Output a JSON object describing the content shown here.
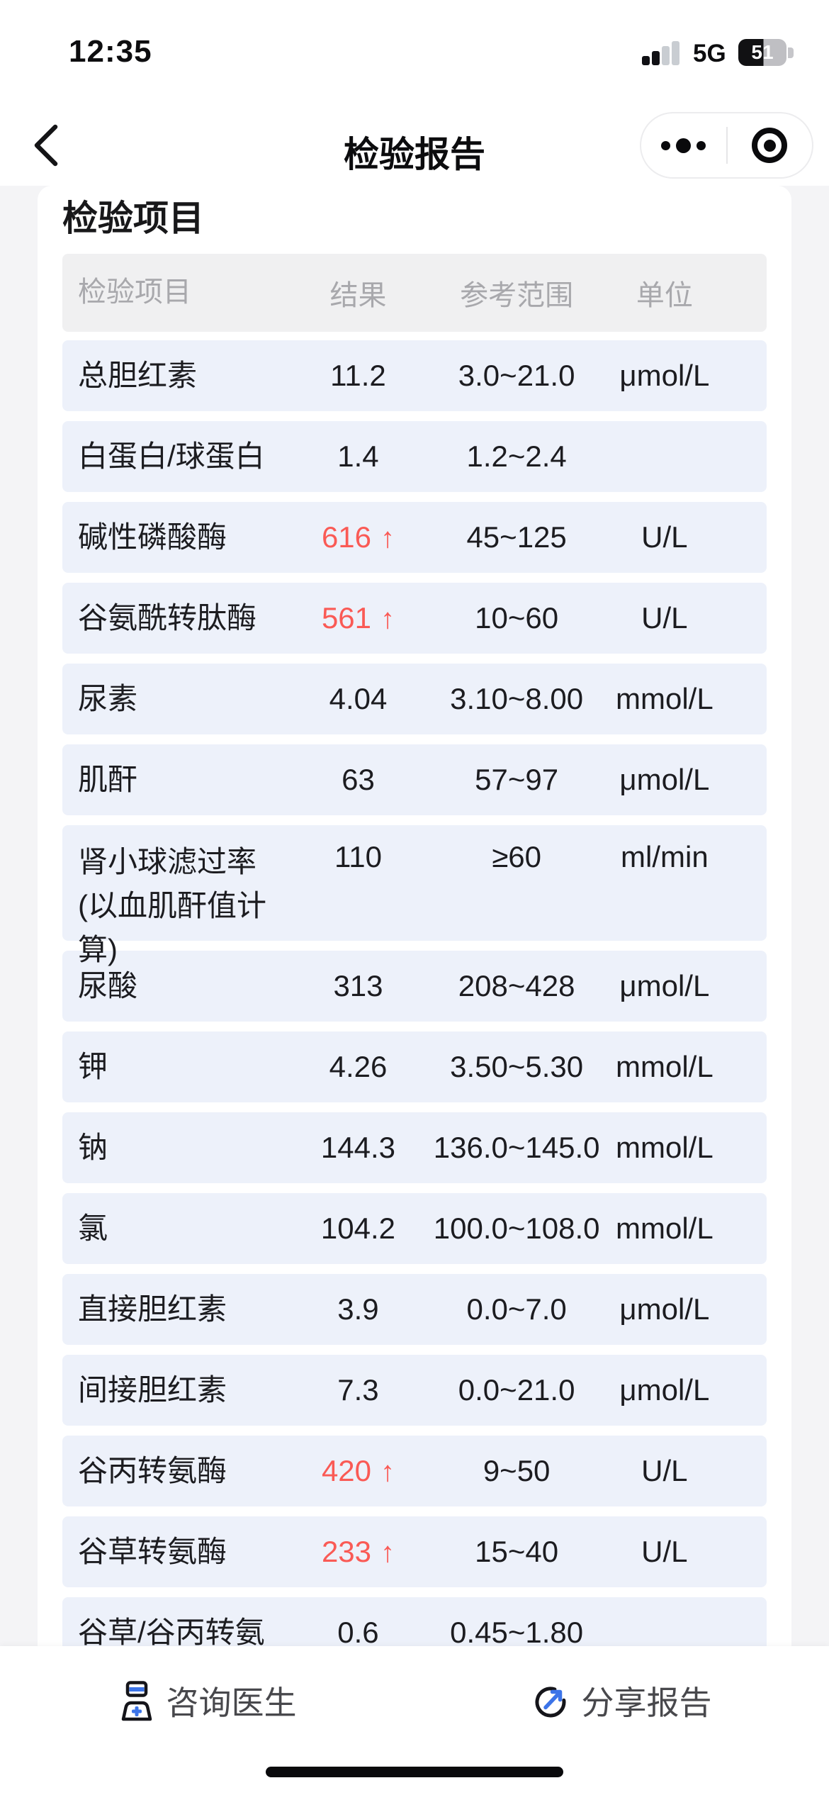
{
  "status_bar": {
    "time": "12:35",
    "network": "5G",
    "battery_percent": "51"
  },
  "nav": {
    "title": "检验报告"
  },
  "section": {
    "title": "检验项目"
  },
  "table": {
    "headers": [
      "检验项目",
      "结果",
      "参考范围",
      "单位"
    ],
    "high_arrow": "↑",
    "rows": [
      {
        "name": "总胆红素",
        "result": "11.2",
        "flag": "",
        "range": "3.0~21.0",
        "unit": "μmol/L"
      },
      {
        "name": "白蛋白/球蛋白",
        "result": "1.4",
        "flag": "",
        "range": "1.2~2.4",
        "unit": ""
      },
      {
        "name": "碱性磷酸酶",
        "result": "616",
        "flag": "high",
        "range": "45~125",
        "unit": "U/L"
      },
      {
        "name": "谷氨酰转肽酶",
        "result": "561",
        "flag": "high",
        "range": "10~60",
        "unit": "U/L"
      },
      {
        "name": "尿素",
        "result": "4.04",
        "flag": "",
        "range": "3.10~8.00",
        "unit": "mmol/L"
      },
      {
        "name": "肌酐",
        "result": "63",
        "flag": "",
        "range": "57~97",
        "unit": "μmol/L"
      },
      {
        "name": "肾小球滤过率(以血肌酐值计算)",
        "result": "110",
        "flag": "",
        "range": "≥60",
        "unit": "ml/min",
        "two_line": true
      },
      {
        "name": "尿酸",
        "result": "313",
        "flag": "",
        "range": "208~428",
        "unit": "μmol/L"
      },
      {
        "name": "钾",
        "result": "4.26",
        "flag": "",
        "range": "3.50~5.30",
        "unit": "mmol/L"
      },
      {
        "name": "钠",
        "result": "144.3",
        "flag": "",
        "range": "136.0~145.0",
        "unit": "mmol/L"
      },
      {
        "name": "氯",
        "result": "104.2",
        "flag": "",
        "range": "100.0~108.0",
        "unit": "mmol/L"
      },
      {
        "name": "直接胆红素",
        "result": "3.9",
        "flag": "",
        "range": "0.0~7.0",
        "unit": "μmol/L"
      },
      {
        "name": "间接胆红素",
        "result": "7.3",
        "flag": "",
        "range": "0.0~21.0",
        "unit": "μmol/L"
      },
      {
        "name": "谷丙转氨酶",
        "result": "420",
        "flag": "high",
        "range": "9~50",
        "unit": "U/L"
      },
      {
        "name": "谷草转氨酶",
        "result": "233",
        "flag": "high",
        "range": "15~40",
        "unit": "U/L"
      },
      {
        "name": "谷草/谷丙转氨",
        "result": "0.6",
        "flag": "",
        "range": "0.45~1.80",
        "unit": ""
      }
    ]
  },
  "footer": {
    "consult_label": "咨询医生",
    "share_label": "分享报告"
  },
  "colors": {
    "accent_blue": "#3c74e8",
    "alert_red": "#fa5a55",
    "row_bg": "#edf1fa",
    "header_bg": "#f0f0f1"
  }
}
